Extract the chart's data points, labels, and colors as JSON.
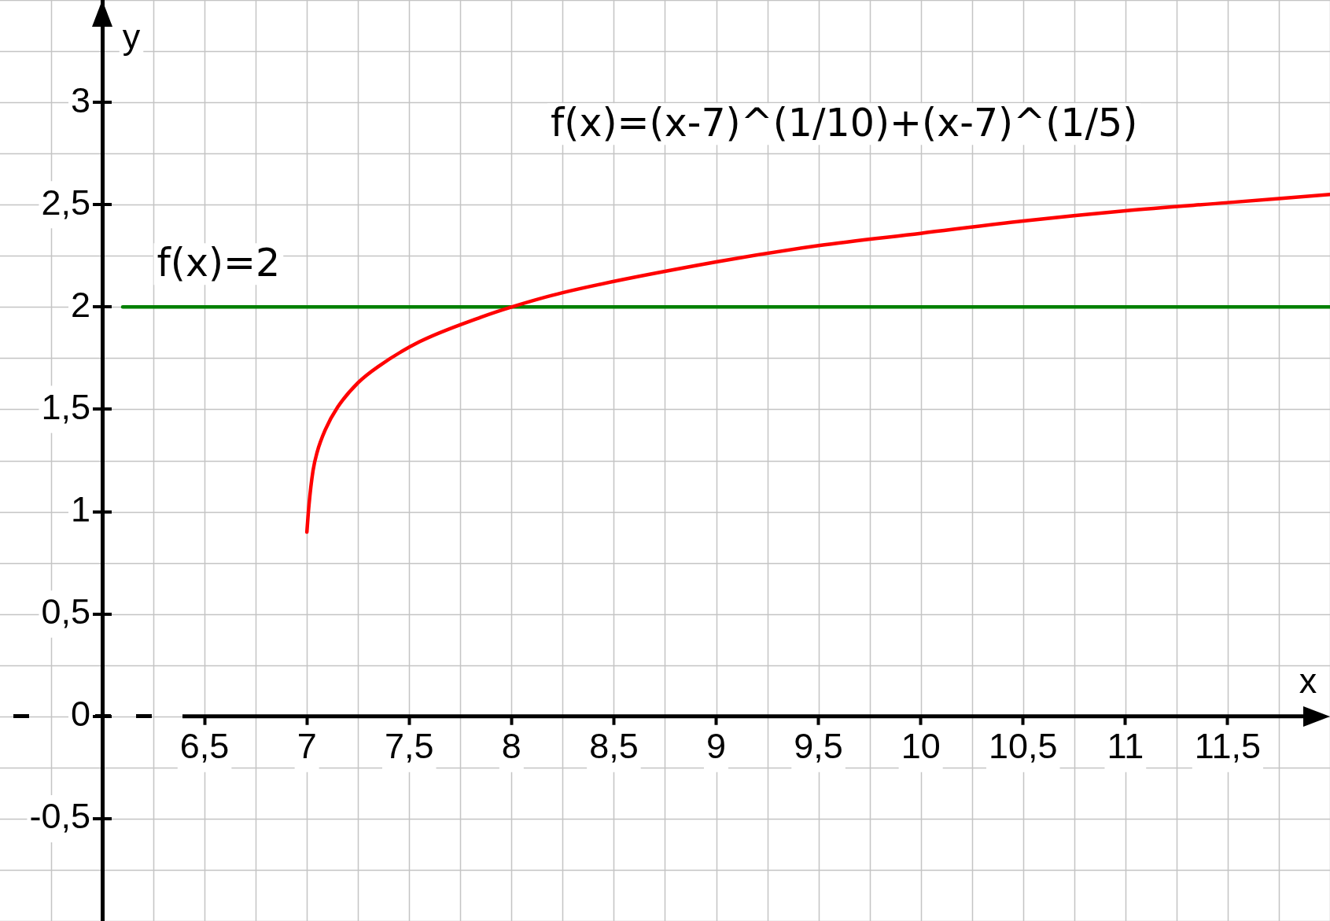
{
  "chart_data": {
    "type": "line",
    "xlabel": "x",
    "ylabel": "y",
    "xlim": [
      6,
      12
    ],
    "ylim": [
      -1,
      3.5
    ],
    "xticks": [
      {
        "value": 6.5,
        "label": "6,5"
      },
      7,
      {
        "value": 7.5,
        "label": "7,5"
      },
      8,
      {
        "value": 8.5,
        "label": "8,5"
      },
      9,
      {
        "value": 9.5,
        "label": "9,5"
      },
      10,
      {
        "value": 10.5,
        "label": "10,5"
      },
      11,
      {
        "value": 11.5,
        "label": "11,5"
      }
    ],
    "yticks": [
      {
        "value": -0.5,
        "label": "-0,5"
      },
      0,
      {
        "value": 0.5,
        "label": "0,5"
      },
      1,
      {
        "value": 1.5,
        "label": "1,5"
      },
      2,
      {
        "value": 2.5,
        "label": "2,5"
      },
      3
    ],
    "grid": true,
    "series": [
      {
        "name": "f(x)=(x-7)^(1/10)+(x-7)^(1/5)",
        "color": "#ff0000",
        "x": [
          7,
          7.01,
          7.03,
          7.05,
          7.09,
          7.15,
          7.25,
          7.35,
          7.55,
          7.85,
          8,
          8.25,
          9,
          9.5,
          10,
          10.5,
          11,
          11.5,
          12
        ],
        "values": [
          0.9,
          1.03,
          1.2,
          1.29,
          1.4,
          1.51,
          1.63,
          1.71,
          1.83,
          1.95,
          2,
          2.07,
          2.22,
          2.3,
          2.36,
          2.42,
          2.47,
          2.51,
          2.55
        ]
      },
      {
        "name": "f(x)=2",
        "color": "#008000",
        "x": [
          6.1,
          12
        ],
        "values": [
          2,
          2
        ]
      }
    ]
  }
}
